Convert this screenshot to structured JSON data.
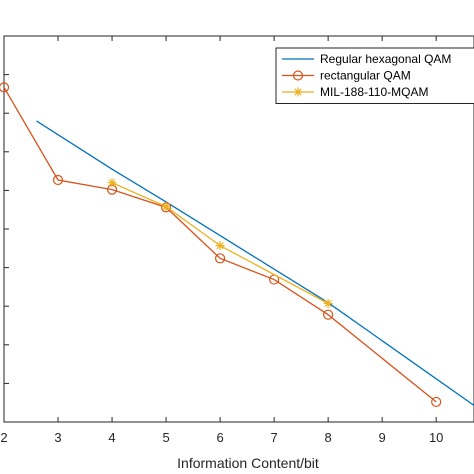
{
  "chart_data": {
    "type": "line",
    "xlabel": "Information Content/bit",
    "ylabel": "",
    "xlim": [
      2,
      10.7
    ],
    "ylim": [
      0,
      1
    ],
    "xticks": [
      2,
      3,
      4,
      5,
      6,
      7,
      8,
      9,
      10
    ],
    "xtick_labels": [
      "2",
      "3",
      "4",
      "5",
      "6",
      "7",
      "8",
      "9",
      "10"
    ],
    "yticks": [
      0.1,
      0.2,
      0.3,
      0.4,
      0.5,
      0.6,
      0.7,
      0.8,
      0.9
    ],
    "grid": false,
    "legend_position": "top-right",
    "series": [
      {
        "name": "Regular hexagonal QAM",
        "color": "#0072BD",
        "marker": "none",
        "x": [
          2.6,
          4,
          5,
          6,
          8,
          10.7
        ],
        "y": [
          0.78,
          0.655,
          0.57,
          0.483,
          0.309,
          0.043
        ]
      },
      {
        "name": "rectangular QAM",
        "color": "#D95319",
        "marker": "circle",
        "x": [
          2,
          3,
          4,
          5,
          6,
          7,
          8,
          10
        ],
        "y": [
          0.867,
          0.627,
          0.602,
          0.556,
          0.424,
          0.369,
          0.278,
          0.052
        ]
      },
      {
        "name": "MIL-188-110-MQAM",
        "color": "#EDB120",
        "marker": "star",
        "x": [
          4,
          5,
          6,
          8
        ],
        "y": [
          0.62,
          0.558,
          0.457,
          0.307
        ]
      }
    ]
  }
}
